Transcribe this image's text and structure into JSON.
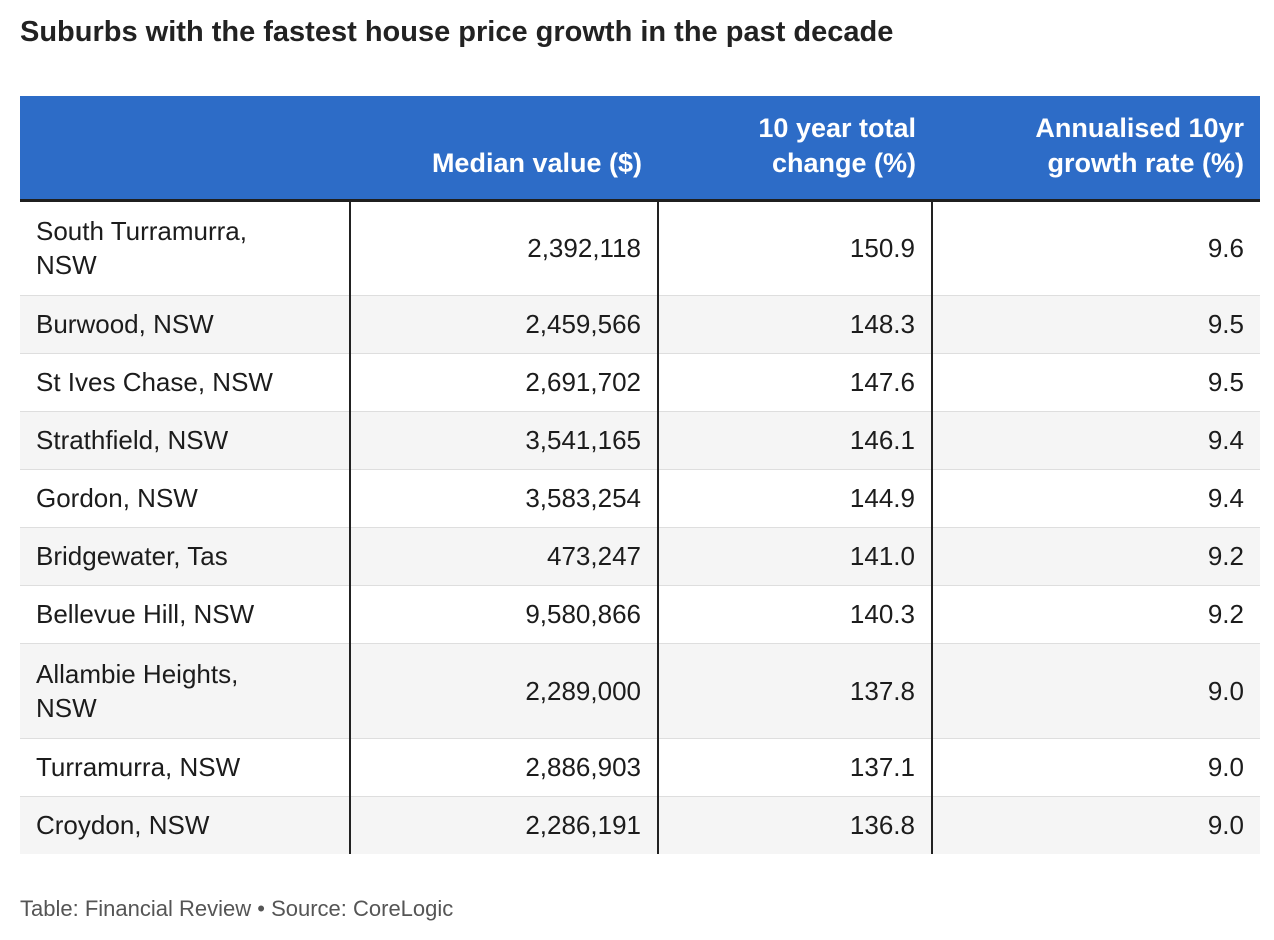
{
  "title": "Suburbs with the fastest house price growth in the past decade",
  "footer": {
    "credit": "Table: Financial Review",
    "separator": "•",
    "source": "Source: CoreLogic"
  },
  "chart_data": {
    "type": "table",
    "title": "Suburbs with the fastest house price growth in the past decade",
    "columns": [
      "",
      "Median value ($)",
      "10 year total change (%)",
      "Annualised 10yr growth rate (%)"
    ],
    "rows": [
      {
        "suburb": "South Turramurra, NSW",
        "median": "2,392,118",
        "change": "150.9",
        "rate": "9.6"
      },
      {
        "suburb": "Burwood, NSW",
        "median": "2,459,566",
        "change": "148.3",
        "rate": "9.5"
      },
      {
        "suburb": "St Ives Chase, NSW",
        "median": "2,691,702",
        "change": "147.6",
        "rate": "9.5"
      },
      {
        "suburb": "Strathfield, NSW",
        "median": "3,541,165",
        "change": "146.1",
        "rate": "9.4"
      },
      {
        "suburb": "Gordon, NSW",
        "median": "3,583,254",
        "change": "144.9",
        "rate": "9.4"
      },
      {
        "suburb": "Bridgewater, Tas",
        "median": "473,247",
        "change": "141.0",
        "rate": "9.2"
      },
      {
        "suburb": "Bellevue Hill, NSW",
        "median": "9,580,866",
        "change": "140.3",
        "rate": "9.2"
      },
      {
        "suburb": "Allambie Heights, NSW",
        "median": "2,289,000",
        "change": "137.8",
        "rate": "9.0"
      },
      {
        "suburb": "Turramurra, NSW",
        "median": "2,886,903",
        "change": "137.1",
        "rate": "9.0"
      },
      {
        "suburb": "Croydon, NSW",
        "median": "2,286,191",
        "change": "136.8",
        "rate": "9.0"
      }
    ]
  },
  "colors": {
    "header_bg": "#2d6cc7",
    "header_text": "#ffffff",
    "stripe": "#f5f5f5",
    "divider": "#222222"
  }
}
